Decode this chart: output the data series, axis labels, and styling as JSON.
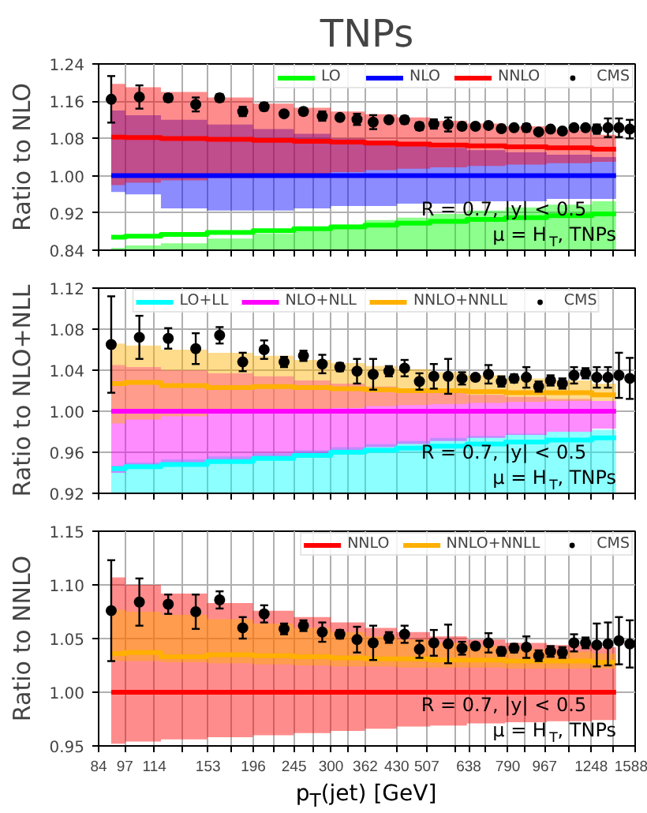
{
  "chart_data": [
    {
      "type": "step",
      "title": "TNPs",
      "ylabel": "Ratio to NLO",
      "log": "x",
      "xlim": [
        84,
        1588
      ],
      "xticks": [
        84,
        97,
        114,
        {
          "value": 133,
          "label": null
        },
        153,
        {
          "value": 174,
          "label": null
        },
        196,
        {
          "value": 220,
          "label": null
        },
        245,
        {
          "value": 272,
          "label": null
        },
        300,
        {
          "value": 330,
          "label": null
        },
        362,
        430,
        507,
        {
          "value": 592,
          "label": null
        },
        638,
        {
          "value": 700,
          "label": null
        },
        790,
        {
          "value": 870,
          "label": null
        },
        967,
        {
          "value": 1100,
          "label": null
        },
        1248,
        {
          "value": 1410,
          "label": null
        },
        1588
      ],
      "ylim": [
        0.84,
        1.24
      ],
      "yticks": [
        {
          "value": 0.84,
          "label": "0.84"
        },
        {
          "value": 0.92,
          "label": "0.92"
        },
        {
          "value": 1.0,
          "label": "1.00"
        },
        {
          "value": 1.08,
          "label": "1.08"
        },
        {
          "value": 1.16,
          "label": "1.16"
        },
        {
          "value": 1.24,
          "label": "1.24"
        }
      ],
      "grid": true,
      "legend": "top right",
      "tick_labels": "y",
      "annotations": [
        "R = 0.7, |y| < 0.5",
        "μ = H$_{T}$,  TNPs"
      ],
      "series": [
        {
          "name": "LO",
          "color": "#00ff00",
          "x": [
            90,
            105,
            133,
            174,
            220,
            272,
            330,
            395,
            468,
            570,
            700,
            870,
            1100,
            1430
          ],
          "values": [
            0.868,
            0.87,
            0.874,
            0.878,
            0.882,
            0.886,
            0.89,
            0.894,
            0.898,
            0.902,
            0.906,
            0.91,
            0.914,
            0.918
          ],
          "lower": [
            0.84,
            0.84,
            0.84,
            0.84,
            0.84,
            0.84,
            0.84,
            0.84,
            0.84,
            0.84,
            0.84,
            0.84,
            0.84,
            0.84
          ],
          "upper": [
            0.845,
            0.85,
            0.855,
            0.865,
            0.875,
            0.885,
            0.895,
            0.905,
            0.91,
            0.918,
            0.925,
            0.932,
            0.938,
            0.945
          ]
        },
        {
          "name": "NLO",
          "color": "#0000ff",
          "x": [
            90,
            105,
            133,
            174,
            220,
            272,
            330,
            395,
            468,
            570,
            700,
            870,
            1100,
            1430
          ],
          "values": [
            1.0,
            1.0,
            1.0,
            1.0,
            1.0,
            1.0,
            1.0,
            1.0,
            1.0,
            1.0,
            1.0,
            1.0,
            1.0,
            1.0
          ],
          "lower": [
            0.965,
            0.96,
            0.93,
            0.925,
            0.925,
            0.93,
            0.935,
            0.935,
            0.94,
            0.94,
            0.945,
            0.945,
            0.95,
            0.95
          ],
          "upper": [
            1.14,
            1.13,
            1.12,
            1.11,
            1.1,
            1.09,
            1.08,
            1.075,
            1.07,
            1.06,
            1.055,
            1.05,
            1.045,
            1.04
          ]
        },
        {
          "name": "NNLO",
          "color": "#ff0000",
          "x": [
            90,
            105,
            133,
            174,
            220,
            272,
            330,
            395,
            468,
            570,
            700,
            870,
            1100,
            1430
          ],
          "values": [
            1.083,
            1.082,
            1.08,
            1.078,
            1.076,
            1.074,
            1.072,
            1.07,
            1.068,
            1.066,
            1.064,
            1.062,
            1.06,
            1.057
          ],
          "lower": [
            0.98,
            0.985,
            0.99,
            0.995,
            1.0,
            1.004,
            1.008,
            1.012,
            1.015,
            1.018,
            1.021,
            1.024,
            1.027,
            1.03
          ],
          "upper": [
            1.197,
            1.19,
            1.18,
            1.168,
            1.155,
            1.146,
            1.138,
            1.132,
            1.125,
            1.118,
            1.112,
            1.106,
            1.098,
            1.088
          ]
        },
        {
          "name": "CMS",
          "type": "scatter",
          "marker": "circle",
          "color": "#000000",
          "x": [
            90,
            105,
            123,
            143,
            163,
            185,
            208,
            232,
            258,
            286,
            315,
            346,
            378,
            412,
            449,
            487,
            527,
            570,
            615,
            662,
            711,
            763,
            818,
            875,
            936,
            999,
            1066,
            1136,
            1210,
            1287,
            1368,
            1453,
            1542
          ],
          "values": [
            1.164,
            1.169,
            1.167,
            1.153,
            1.167,
            1.138,
            1.148,
            1.133,
            1.138,
            1.128,
            1.125,
            1.121,
            1.115,
            1.12,
            1.12,
            1.106,
            1.111,
            1.11,
            1.106,
            1.106,
            1.108,
            1.101,
            1.103,
            1.103,
            1.094,
            1.1,
            1.096,
            1.103,
            1.103,
            1.1,
            1.103,
            1.103,
            1.1
          ],
          "errors": [
            0.05,
            0.025,
            0.008,
            0.015,
            0.008,
            0.01,
            0.008,
            0.006,
            0.007,
            0.01,
            0.005,
            0.012,
            0.015,
            0.006,
            0.008,
            0.008,
            0.01,
            0.015,
            0.006,
            0.004,
            0.006,
            0.004,
            0.004,
            0.008,
            0.005,
            0.004,
            0.004,
            0.006,
            0.006,
            0.01,
            0.02,
            0.02,
            0.02
          ]
        }
      ]
    },
    {
      "type": "step",
      "ylabel": "Ratio to NLO+NLL",
      "log": "x",
      "xlim": [
        84,
        1588
      ],
      "xticks": [
        84,
        97,
        114,
        {
          "value": 133,
          "label": null
        },
        153,
        {
          "value": 174,
          "label": null
        },
        196,
        {
          "value": 220,
          "label": null
        },
        245,
        {
          "value": 272,
          "label": null
        },
        300,
        {
          "value": 330,
          "label": null
        },
        362,
        430,
        507,
        {
          "value": 592,
          "label": null
        },
        638,
        {
          "value": 700,
          "label": null
        },
        790,
        {
          "value": 870,
          "label": null
        },
        967,
        {
          "value": 1100,
          "label": null
        },
        1248,
        {
          "value": 1410,
          "label": null
        },
        1588
      ],
      "ylim": [
        0.92,
        1.12
      ],
      "yticks": [
        {
          "value": 0.92,
          "label": "0.92"
        },
        {
          "value": 0.96,
          "label": "0.96"
        },
        {
          "value": 1.0,
          "label": "1.00"
        },
        {
          "value": 1.04,
          "label": "1.04"
        },
        {
          "value": 1.08,
          "label": "1.08"
        },
        {
          "value": 1.12,
          "label": "1.12"
        }
      ],
      "grid": true,
      "legend": "top",
      "tick_labels": "y",
      "annotations": [
        "R = 0.7, |y| < 0.5",
        "μ = H$_{T}$,  TNPs"
      ],
      "series": [
        {
          "name": "LO+LL",
          "color": "#00ffff",
          "x": [
            90,
            105,
            133,
            174,
            220,
            272,
            330,
            395,
            468,
            570,
            700,
            870,
            1100,
            1430
          ],
          "values": [
            0.944,
            0.946,
            0.948,
            0.951,
            0.954,
            0.957,
            0.96,
            0.962,
            0.964,
            0.966,
            0.968,
            0.97,
            0.972,
            0.974
          ],
          "lower": [
            0.92,
            0.92,
            0.92,
            0.92,
            0.92,
            0.92,
            0.92,
            0.92,
            0.92,
            0.92,
            0.92,
            0.92,
            0.92,
            0.92
          ],
          "upper": [
            0.947,
            0.95,
            0.953,
            0.956,
            0.959,
            0.962,
            0.965,
            0.968,
            0.971,
            0.974,
            0.976,
            0.978,
            0.98,
            0.982
          ]
        },
        {
          "name": "NLO+NLL",
          "color": "#ff00ff",
          "x": [
            90,
            105,
            133,
            174,
            220,
            272,
            330,
            395,
            468,
            570,
            700,
            870,
            1100,
            1430
          ],
          "values": [
            1.0,
            1.0,
            1.0,
            1.0,
            1.0,
            1.0,
            1.0,
            1.0,
            1.0,
            1.0,
            1.0,
            1.0,
            1.0,
            1.0
          ],
          "lower": [
            0.94,
            0.945,
            0.95,
            0.953,
            0.956,
            0.959,
            0.962,
            0.965,
            0.968,
            0.971,
            0.974,
            0.977,
            0.98,
            0.983
          ],
          "upper": [
            1.045,
            1.043,
            1.04,
            1.037,
            1.034,
            1.03,
            1.027,
            1.024,
            1.021,
            1.018,
            1.016,
            1.014,
            1.012,
            1.01
          ]
        },
        {
          "name": "NNLO+NNLL",
          "color": "#ffb000",
          "x": [
            90,
            105,
            133,
            174,
            220,
            272,
            330,
            395,
            468,
            570,
            700,
            870,
            1100,
            1430
          ],
          "values": [
            1.027,
            1.028,
            1.025,
            1.023,
            1.024,
            1.023,
            1.022,
            1.021,
            1.02,
            1.02,
            1.019,
            1.018,
            1.018,
            1.016
          ],
          "lower": [
            0.988,
            0.992,
            0.995,
            0.998,
            1.0,
            1.002,
            1.003,
            1.005,
            1.006,
            1.007,
            1.008,
            1.009,
            1.01,
            1.01
          ],
          "upper": [
            1.066,
            1.064,
            1.06,
            1.057,
            1.054,
            1.05,
            1.047,
            1.044,
            1.041,
            1.038,
            1.035,
            1.032,
            1.03,
            1.027
          ]
        },
        {
          "name": "CMS",
          "type": "scatter",
          "marker": "circle",
          "color": "#000000",
          "x": [
            90,
            105,
            123,
            143,
            163,
            185,
            208,
            232,
            258,
            286,
            315,
            346,
            378,
            412,
            449,
            487,
            527,
            570,
            615,
            662,
            711,
            763,
            818,
            875,
            936,
            999,
            1066,
            1136,
            1210,
            1287,
            1368,
            1453,
            1542
          ],
          "values": [
            1.065,
            1.072,
            1.071,
            1.061,
            1.074,
            1.048,
            1.06,
            1.048,
            1.054,
            1.046,
            1.043,
            1.039,
            1.036,
            1.039,
            1.042,
            1.029,
            1.034,
            1.034,
            1.032,
            1.033,
            1.036,
            1.029,
            1.032,
            1.033,
            1.024,
            1.03,
            1.027,
            1.035,
            1.037,
            1.033,
            1.033,
            1.035,
            1.032
          ],
          "errors": [
            0.047,
            0.021,
            0.01,
            0.015,
            0.008,
            0.009,
            0.009,
            0.005,
            0.005,
            0.009,
            0.004,
            0.012,
            0.015,
            0.005,
            0.008,
            0.008,
            0.012,
            0.017,
            0.006,
            0.003,
            0.009,
            0.005,
            0.004,
            0.01,
            0.005,
            0.005,
            0.005,
            0.008,
            0.005,
            0.01,
            0.01,
            0.022,
            0.02
          ]
        }
      ]
    },
    {
      "type": "step",
      "ylabel": "Ratio to NNLO",
      "log": "x",
      "xlabel": "p$_{T}$(jet) [GeV]",
      "xlim": [
        84,
        1588
      ],
      "xticks": [
        84,
        97,
        114,
        {
          "value": 133,
          "label": null
        },
        153,
        {
          "value": 174,
          "label": null
        },
        196,
        {
          "value": 220,
          "label": null
        },
        245,
        {
          "value": 272,
          "label": null
        },
        300,
        {
          "value": 330,
          "label": null
        },
        362,
        430,
        507,
        {
          "value": 592,
          "label": null
        },
        638,
        {
          "value": 700,
          "label": null
        },
        790,
        {
          "value": 870,
          "label": null
        },
        967,
        {
          "value": 1100,
          "label": null
        },
        1248,
        {
          "value": 1410,
          "label": null
        },
        1588
      ],
      "ylim": [
        0.95,
        1.15
      ],
      "yticks": [
        {
          "value": 0.95,
          "label": "0.95"
        },
        {
          "value": 1.0,
          "label": "1.00"
        },
        {
          "value": 1.05,
          "label": "1.05"
        },
        {
          "value": 1.1,
          "label": "1.10"
        },
        {
          "value": 1.15,
          "label": "1.15"
        }
      ],
      "grid": true,
      "legend": "top right",
      "annotations": [
        "R = 0.7, |y| < 0.5",
        "μ = H$_{T}$,  TNPs"
      ],
      "series": [
        {
          "name": "NNLO",
          "color": "#ff0000",
          "x": [
            90,
            105,
            133,
            174,
            220,
            272,
            330,
            395,
            468,
            570,
            700,
            870,
            1100,
            1430
          ],
          "values": [
            1.0,
            1.0,
            1.0,
            1.0,
            1.0,
            1.0,
            1.0,
            1.0,
            1.0,
            1.0,
            1.0,
            1.0,
            1.0,
            1.0
          ],
          "lower": [
            0.952,
            0.954,
            0.956,
            0.958,
            0.96,
            0.962,
            0.964,
            0.966,
            0.968,
            0.969,
            0.971,
            0.972,
            0.973,
            0.974
          ],
          "upper": [
            1.107,
            1.1,
            1.092,
            1.083,
            1.076,
            1.07,
            1.065,
            1.06,
            1.056,
            1.052,
            1.049,
            1.046,
            1.044,
            1.042
          ]
        },
        {
          "name": "NNLO+NNLL",
          "color": "#ffb000",
          "x": [
            90,
            105,
            133,
            174,
            220,
            272,
            330,
            395,
            468,
            570,
            700,
            870,
            1100,
            1430
          ],
          "values": [
            1.036,
            1.037,
            1.033,
            1.035,
            1.034,
            1.033,
            1.032,
            1.031,
            1.031,
            1.03,
            1.03,
            1.029,
            1.029,
            1.028
          ],
          "lower": [
            1.029,
            1.029,
            1.028,
            1.027,
            1.026,
            1.025,
            1.024,
            1.024,
            1.023,
            1.023,
            1.023,
            1.022,
            1.022,
            1.022
          ],
          "upper": [
            1.077,
            1.075,
            1.072,
            1.068,
            1.064,
            1.06,
            1.056,
            1.052,
            1.049,
            1.046,
            1.043,
            1.04,
            1.038,
            1.036
          ]
        },
        {
          "name": "CMS",
          "type": "scatter",
          "marker": "circle",
          "color": "#000000",
          "x": [
            90,
            105,
            123,
            143,
            163,
            185,
            208,
            232,
            258,
            286,
            315,
            346,
            378,
            412,
            449,
            487,
            527,
            570,
            615,
            662,
            711,
            763,
            818,
            875,
            936,
            999,
            1066,
            1136,
            1210,
            1287,
            1368,
            1453,
            1542
          ],
          "values": [
            1.076,
            1.084,
            1.082,
            1.075,
            1.086,
            1.06,
            1.073,
            1.059,
            1.062,
            1.056,
            1.054,
            1.049,
            1.046,
            1.051,
            1.054,
            1.04,
            1.046,
            1.045,
            1.041,
            1.043,
            1.046,
            1.038,
            1.041,
            1.042,
            1.034,
            1.038,
            1.037,
            1.046,
            1.046,
            1.044,
            1.045,
            1.048,
            1.045
          ],
          "errors": [
            0.047,
            0.022,
            0.009,
            0.016,
            0.008,
            0.01,
            0.008,
            0.005,
            0.005,
            0.009,
            0.004,
            0.012,
            0.016,
            0.005,
            0.008,
            0.008,
            0.012,
            0.018,
            0.006,
            0.003,
            0.009,
            0.004,
            0.004,
            0.01,
            0.005,
            0.005,
            0.005,
            0.008,
            0.005,
            0.02,
            0.02,
            0.022,
            0.022
          ]
        }
      ]
    }
  ]
}
